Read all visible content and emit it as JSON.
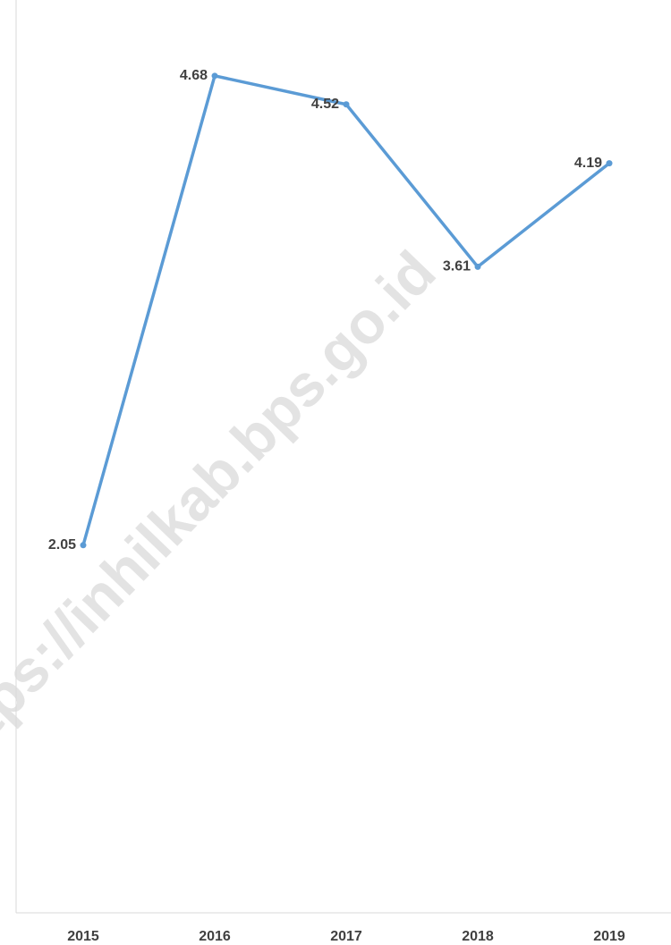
{
  "chart_data": {
    "type": "line",
    "watermark": "https://inhilkab.bps.go.id",
    "categories": [
      "2015",
      "2016",
      "2017",
      "2018",
      "2019"
    ],
    "values": [
      2.05,
      4.68,
      4.52,
      3.61,
      4.19
    ],
    "color": "#5b9bd5",
    "ylim": [
      0,
      5.1
    ]
  }
}
